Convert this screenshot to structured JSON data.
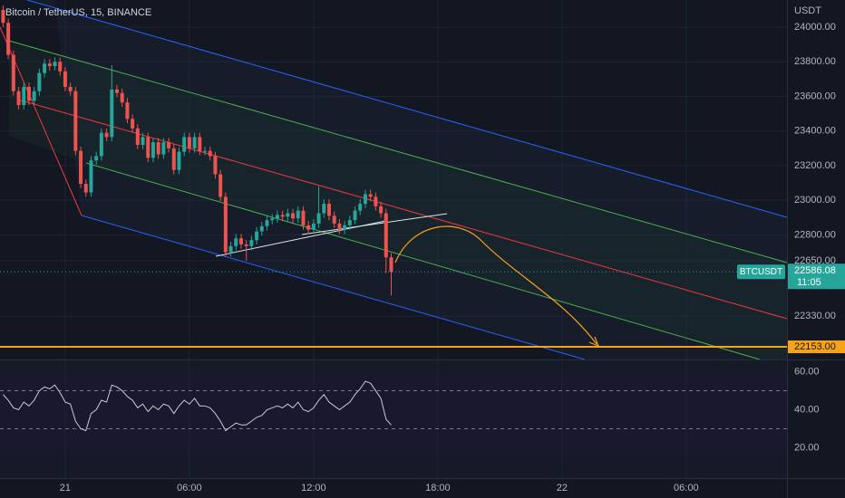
{
  "chart_data": {
    "type": "candlestick",
    "title": "Bitcoin / TetherUS, 15, BINANCE",
    "y_axis_unit": "USDT",
    "x": [
      -3,
      -2.75,
      -2.5,
      -2.25,
      -2,
      -1.75,
      -1.5,
      -1.25,
      -1,
      -0.75,
      -0.5,
      -0.25,
      0,
      0.25,
      0.5,
      0.75,
      1,
      1.25,
      1.5,
      1.75,
      2,
      2.25,
      2.5,
      2.75,
      3,
      3.25,
      3.5,
      3.75,
      4,
      4.25,
      4.5,
      4.75,
      5,
      5.25,
      5.5,
      5.75,
      6,
      6.25,
      6.5,
      6.75,
      7,
      7.25,
      7.5,
      7.75,
      8,
      8.25,
      8.5,
      8.75,
      9,
      9.25,
      9.5,
      9.75,
      10,
      10.25,
      10.5,
      10.75,
      11,
      11.25,
      11.5,
      11.75,
      12,
      12.25,
      12.5,
      12.75,
      13,
      13.25,
      13.5,
      13.75,
      14,
      14.25,
      14.5,
      14.75,
      15,
      15.25,
      15.5,
      15.75
    ],
    "open": [
      24100,
      24025,
      23840,
      23630,
      23550,
      23655,
      23575,
      23630,
      23735,
      23790,
      23775,
      23800,
      23745,
      23655,
      23630,
      23285,
      23095,
      23045,
      23230,
      23255,
      23390,
      23365,
      23640,
      23620,
      23565,
      23470,
      23415,
      23320,
      23365,
      23245,
      23335,
      23265,
      23335,
      23300,
      23175,
      23280,
      23365,
      23300,
      23365,
      23285,
      23285,
      23255,
      23150,
      23020,
      22700,
      22735,
      22780,
      22745,
      22735,
      22770,
      22820,
      22850,
      22885,
      22895,
      22915,
      22905,
      22925,
      22895,
      22940,
      22855,
      22830,
      22865,
      22925,
      22980,
      22910,
      22865,
      22830,
      22855,
      22885,
      22940,
      22980,
      23035,
      23020,
      22965,
      22925,
      22670
    ],
    "high": [
      24125,
      24050,
      23865,
      23655,
      23680,
      23680,
      23655,
      23760,
      23815,
      23815,
      23825,
      23825,
      23770,
      23680,
      23655,
      23310,
      23120,
      23255,
      23280,
      23415,
      23415,
      23780,
      23665,
      23645,
      23590,
      23495,
      23440,
      23390,
      23390,
      23360,
      23360,
      23360,
      23360,
      23325,
      23305,
      23390,
      23390,
      23390,
      23390,
      23310,
      23310,
      23280,
      23175,
      23045,
      22760,
      22805,
      22805,
      22770,
      22795,
      22845,
      22875,
      22910,
      22920,
      22940,
      22940,
      22950,
      22950,
      22965,
      22965,
      22880,
      22890,
      23080,
      23005,
      23005,
      22935,
      22890,
      22880,
      22910,
      22965,
      23005,
      23060,
      23060,
      23045,
      22990,
      22950,
      22695
    ],
    "low": [
      24000,
      23815,
      23605,
      23525,
      23525,
      23550,
      23550,
      23605,
      23710,
      23750,
      23750,
      23720,
      23630,
      23605,
      23260,
      23070,
      23020,
      23020,
      23205,
      23230,
      23340,
      23340,
      23595,
      23540,
      23445,
      23390,
      23295,
      23295,
      23220,
      23220,
      23240,
      23240,
      23275,
      23150,
      23150,
      23255,
      23275,
      23275,
      23260,
      23260,
      23230,
      23125,
      22995,
      22675,
      22675,
      22710,
      22720,
      22650,
      22710,
      22745,
      22795,
      22825,
      22860,
      22870,
      22880,
      22880,
      22870,
      22870,
      22830,
      22805,
      22805,
      22840,
      22900,
      22885,
      22840,
      22805,
      22805,
      22830,
      22860,
      22915,
      22955,
      22995,
      22940,
      22900,
      22580,
      22450
    ],
    "close": [
      24025,
      23840,
      23630,
      23550,
      23655,
      23575,
      23630,
      23735,
      23790,
      23775,
      23800,
      23745,
      23655,
      23630,
      23285,
      23095,
      23045,
      23230,
      23255,
      23390,
      23365,
      23640,
      23620,
      23565,
      23470,
      23415,
      23320,
      23365,
      23245,
      23335,
      23265,
      23335,
      23300,
      23175,
      23280,
      23365,
      23300,
      23365,
      23285,
      23285,
      23255,
      23150,
      23020,
      22700,
      22735,
      22780,
      22745,
      22735,
      22770,
      22820,
      22850,
      22885,
      22895,
      22915,
      22905,
      22925,
      22895,
      22940,
      22855,
      22830,
      22865,
      22925,
      22980,
      22910,
      22865,
      22830,
      22855,
      22885,
      22940,
      22980,
      23035,
      23020,
      22965,
      22925,
      22670,
      22586.08
    ],
    "up_color": "#26a69a",
    "down_color": "#ef5350",
    "xlim": [
      -3.15,
      34.87
    ],
    "xticks": [
      {
        "value": 0,
        "label": "21"
      },
      {
        "value": 6,
        "label": "06:00"
      },
      {
        "value": 12,
        "label": "12:00"
      },
      {
        "value": 18,
        "label": "18:00"
      },
      {
        "value": 24,
        "label": "22"
      },
      {
        "value": 30,
        "label": "06:00"
      }
    ],
    "ylim": [
      22080,
      24157
    ],
    "yticks": [
      {
        "value": 24000,
        "label": "24000.00"
      },
      {
        "value": 23800,
        "label": "23800.00"
      },
      {
        "value": 23600,
        "label": "23600.00"
      },
      {
        "value": 23400,
        "label": "23400.00"
      },
      {
        "value": 23200,
        "label": "23200.00"
      },
      {
        "value": 23000,
        "label": "23000.00"
      },
      {
        "value": 22800,
        "label": "22800.00"
      },
      {
        "value": 22650,
        "label": "22650.00"
      },
      {
        "value": 22330,
        "label": "22330.00"
      }
    ],
    "grid": true,
    "symbol": "BTCUSDT",
    "last_price": {
      "value": 22586.08,
      "label": "22586.08"
    },
    "countdown": "11:05",
    "target_level": {
      "value": 22153,
      "label": "22153.00",
      "color": "#f7a21b"
    },
    "indicator": {
      "type": "line",
      "color": "#c8cbd3",
      "values": [
        48,
        45,
        41,
        40,
        44,
        42,
        45,
        50,
        52,
        51,
        53,
        49,
        44,
        43,
        34,
        30,
        29,
        38,
        40,
        45,
        44,
        53,
        52,
        50,
        47,
        45,
        41,
        43,
        39,
        42,
        40,
        43,
        42,
        38,
        42,
        45,
        43,
        46,
        42,
        42,
        41,
        38,
        34,
        29,
        31,
        33,
        32,
        32,
        34,
        36,
        37,
        40,
        41,
        42,
        41,
        43,
        41,
        44,
        40,
        39,
        41,
        45,
        48,
        44,
        42,
        40,
        42,
        44,
        48,
        51,
        55,
        54,
        50,
        46,
        35,
        32
      ],
      "ylim": [
        4,
        66
      ],
      "yticks": [
        {
          "value": 60,
          "label": "60.00"
        },
        {
          "value": 40,
          "label": "40.00"
        },
        {
          "value": 20,
          "label": "20.00"
        }
      ],
      "bands": [
        50,
        30
      ]
    }
  }
}
